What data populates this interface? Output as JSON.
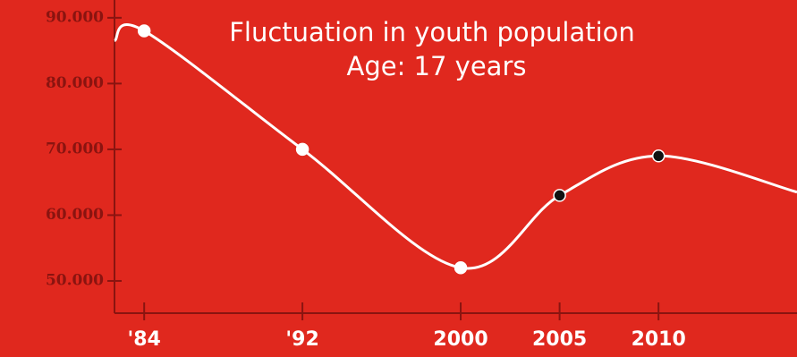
{
  "chart_data": {
    "type": "line",
    "title": "Fluctuation in youth population",
    "subtitle": "Age:  17 years",
    "x": [
      1982.5,
      1984,
      1992,
      2000,
      2005,
      2010,
      2017
    ],
    "series": [
      {
        "color": "#ffffff",
        "values": [
          86500,
          88000,
          70000,
          52000,
          63000,
          69000,
          63500
        ],
        "marker_colors": [
          null,
          "#ffffff",
          "#ffffff",
          "#ffffff",
          "#111111",
          "#111111",
          null
        ]
      }
    ],
    "xlim": [
      1982.5,
      2017
    ],
    "xticks": [
      {
        "value": 1984,
        "label": "'84"
      },
      {
        "value": 1992,
        "label": "'92"
      },
      2000,
      2005,
      2010
    ],
    "ylim": [
      45100,
      92700
    ],
    "yticks": [
      {
        "value": 50000,
        "label": "50.000"
      },
      {
        "value": 60000,
        "label": "60.000"
      },
      {
        "value": 70000,
        "label": "70.000"
      },
      {
        "value": 80000,
        "label": "80.000"
      },
      {
        "value": 90000,
        "label": "90.000"
      }
    ]
  }
}
